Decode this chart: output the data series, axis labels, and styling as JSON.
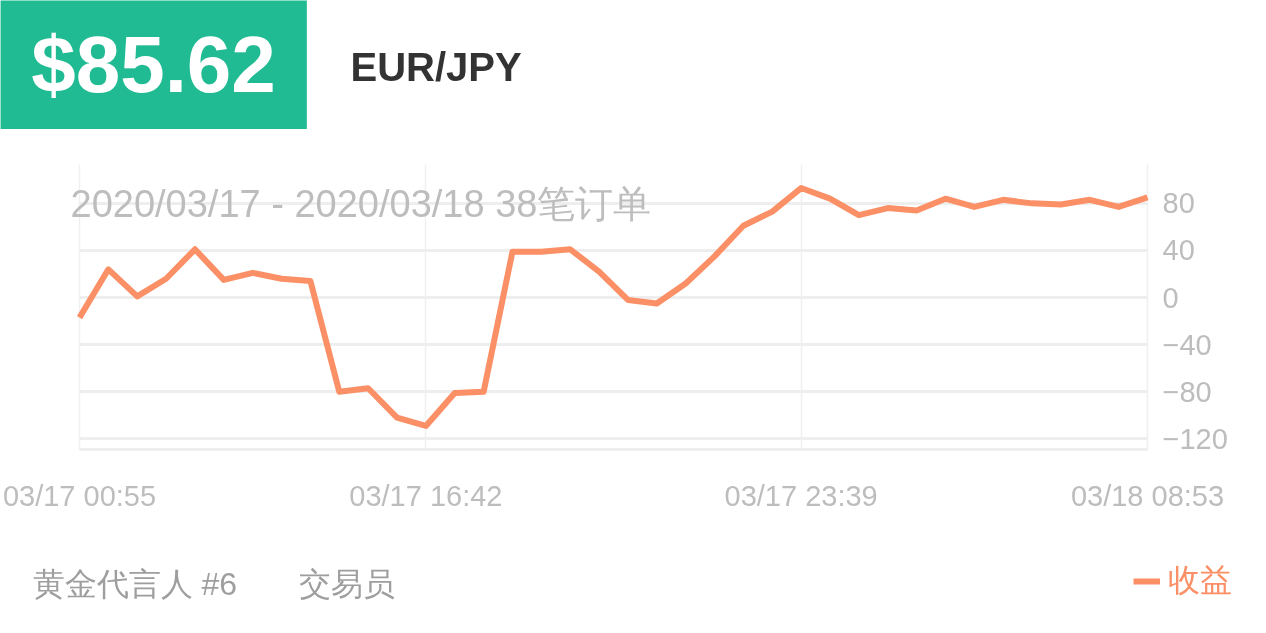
{
  "chart_data": {
    "type": "line",
    "title": "EUR/JPY",
    "subtitle": "2020/03/17 - 2020/03/18  38笔订单",
    "categories": [
      "03/17 00:55",
      null,
      null,
      null,
      null,
      null,
      null,
      null,
      null,
      null,
      null,
      null,
      "03/17 16:42",
      null,
      null,
      null,
      null,
      null,
      null,
      null,
      null,
      null,
      null,
      null,
      null,
      "03/17 23:39",
      null,
      null,
      null,
      null,
      null,
      null,
      null,
      null,
      null,
      null,
      null,
      "03/18 08:53"
    ],
    "series": [
      {
        "name": "收益",
        "color": "#fb8f66",
        "values": [
          -17,
          24,
          1,
          16,
          41,
          15,
          21,
          16,
          14,
          -80,
          -77,
          -102,
          -109,
          -81,
          -80,
          39,
          39,
          41,
          22,
          -2,
          -5,
          12,
          35,
          61,
          73,
          93,
          84,
          70,
          76,
          74,
          84,
          77,
          83,
          80,
          79,
          83,
          77,
          85
        ]
      }
    ],
    "ylim": [
      -129,
      113
    ],
    "yticks": [
      -120,
      -80,
      -40,
      0,
      40,
      80
    ],
    "grid": true,
    "legend": "bottom right",
    "line_style": "solid",
    "annotations": [
      "$85.62",
      "黄金代言人 #6",
      "交易员"
    ]
  }
}
